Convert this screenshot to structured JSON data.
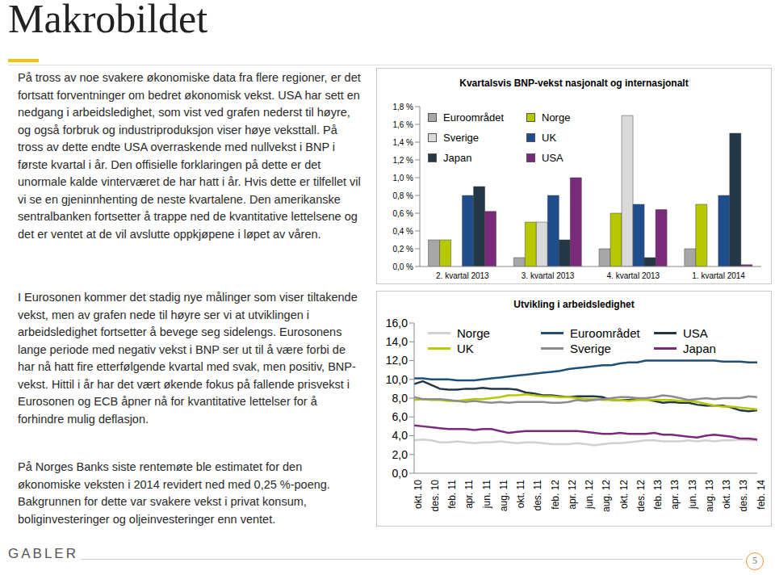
{
  "title": "Makrobildet",
  "paragraphs": [
    "På tross av noe svakere økonomiske data fra flere regioner, er det fortsatt forventninger om bedret økonomisk vekst. USA har sett en nedgang i arbeidsledighet, som vist ved grafen nederst til høyre, og også forbruk og industriproduksjon viser høye veksttall. På tross av dette endte USA overraskende med nullvekst i BNP i første kvartal i år. Den offisielle forklaringen på dette er det unormale kalde vinterværet de har hatt i år. Hvis dette er tilfellet vil vi se en gjeninnhenting de neste kvartalene. Den amerikanske sentralbanken fortsetter å trappe ned de kvantitative lettelsene og det er ventet at de vil avslutte oppkjøpene i løpet av våren.",
    "I Eurosonen kommer det stadig nye målinger som viser tiltakende vekst, men av grafen nede til høyre ser vi at utviklingen i arbeidsledighet fortsetter å bevege seg sidelengs. Eurosonens lange periode med negativ vekst i BNP ser ut til å være forbi de har nå hatt fire etterfølgende kvartal med svak, men positiv, BNP-vekst. Hittil i år har det vært økende fokus på fallende prisvekst i Eurosonen og ECB åpner nå for kvantitative lettelser for å forhindre mulig deflasjon.",
    "På Norges Banks siste rentemøte ble estimatet for den økonomiske veksten i 2014 revidert ned med 0,25 %-poeng. Bakgrunnen for dette var svakere vekst i privat konsum, boliginvesteringer og oljeinvesteringer enn ventet."
  ],
  "footer": {
    "logo": "GABLER",
    "page": 5
  },
  "chart_data": [
    {
      "type": "bar",
      "title": "Kvartalsvis BNP-vekst nasjonalt og internasjonalt",
      "categories": [
        "2. kvartal 2013",
        "3. kvartal 2013",
        "4. kvartal 2013",
        "1. kvartal 2014"
      ],
      "series": [
        {
          "name": "Euroområdet",
          "color": "#a6a6a6",
          "values": [
            0.3,
            0.1,
            0.2,
            0.2
          ]
        },
        {
          "name": "Norge",
          "color": "#b5c800",
          "values": [
            0.3,
            0.5,
            0.6,
            0.7
          ]
        },
        {
          "name": "Sverige",
          "color": "#d9d9d9",
          "values": [
            0.0,
            0.5,
            1.7,
            null
          ]
        },
        {
          "name": "UK",
          "color": "#1f4e8c",
          "values": [
            0.8,
            0.8,
            0.7,
            0.8
          ]
        },
        {
          "name": "Japan",
          "color": "#243746",
          "values": [
            0.9,
            0.3,
            0.1,
            1.5
          ]
        },
        {
          "name": "USA",
          "color": "#7a2a7a",
          "values": [
            0.62,
            1.0,
            0.64,
            0.02
          ]
        }
      ],
      "ylim": [
        0,
        1.8
      ],
      "yticks": [
        {
          "value": 0,
          "label": "0,0 %"
        },
        {
          "value": 0.2,
          "label": "0,2 %"
        },
        {
          "value": 0.4,
          "label": "0,4 %"
        },
        {
          "value": 0.6,
          "label": "0,6 %"
        },
        {
          "value": 0.8,
          "label": "0,8 %"
        },
        {
          "value": 1.0,
          "label": "1,0 %"
        },
        {
          "value": 1.2,
          "label": "1,2 %"
        },
        {
          "value": 1.4,
          "label": "1,4 %"
        },
        {
          "value": 1.6,
          "label": "1,6 %"
        },
        {
          "value": 1.8,
          "label": "1,8 %"
        }
      ],
      "grid": false,
      "legend": "upper left"
    },
    {
      "type": "line",
      "title": "Utvikling i arbeidsledighet",
      "categories": [
        "okt. 10",
        null,
        "des. 10",
        null,
        "feb. 11",
        null,
        "apr. 11",
        null,
        "jun. 11",
        null,
        "aug. 11",
        null,
        "okt. 11",
        null,
        "des. 11",
        null,
        "feb. 12",
        null,
        "apr. 12",
        null,
        "jun. 12",
        null,
        "aug. 12",
        null,
        "okt. 12",
        null,
        "des. 12",
        null,
        "feb. 13",
        null,
        "apr. 13",
        null,
        "jun. 13",
        null,
        "aug. 13",
        null,
        "okt. 13",
        null,
        "des. 13",
        null,
        "feb. 14"
      ],
      "series": [
        {
          "name": "Norge",
          "color": "#d0d0d0",
          "values": [
            3.5,
            3.6,
            3.5,
            3.3,
            3.3,
            3.4,
            3.3,
            3.2,
            3.3,
            3.3,
            3.4,
            3.3,
            3.2,
            3.3,
            3.3,
            3.2,
            3.1,
            3.1,
            3.1,
            3.2,
            3.1,
            3.0,
            3.1,
            3.2,
            3.2,
            3.3,
            3.4,
            3.5,
            3.5,
            3.4,
            3.4,
            3.4,
            3.5,
            3.4,
            3.5,
            3.4,
            3.5,
            3.5,
            3.6,
            3.5,
            3.5
          ]
        },
        {
          "name": "Euroområdet",
          "color": "#1f4e79",
          "values": [
            10.1,
            10.1,
            10.0,
            10.0,
            10.0,
            9.9,
            9.9,
            9.9,
            10.0,
            10.1,
            10.2,
            10.3,
            10.4,
            10.5,
            10.6,
            10.7,
            10.8,
            10.9,
            11.1,
            11.2,
            11.3,
            11.4,
            11.5,
            11.5,
            11.7,
            11.8,
            11.8,
            12.0,
            12.0,
            12.0,
            12.0,
            12.0,
            12.0,
            12.0,
            12.0,
            12.0,
            11.9,
            11.9,
            11.9,
            11.8,
            11.8
          ]
        },
        {
          "name": "USA",
          "color": "#243746",
          "values": [
            9.5,
            9.8,
            9.4,
            9.0,
            8.9,
            8.9,
            9.0,
            9.0,
            9.1,
            9.0,
            9.0,
            9.0,
            8.9,
            8.6,
            8.5,
            8.3,
            8.3,
            8.2,
            8.1,
            8.2,
            8.2,
            8.2,
            8.1,
            7.8,
            7.8,
            7.8,
            7.9,
            7.9,
            7.7,
            7.5,
            7.6,
            7.5,
            7.5,
            7.3,
            7.2,
            7.2,
            7.2,
            7.0,
            6.7,
            6.6,
            6.7
          ]
        },
        {
          "name": "UK",
          "color": "#b5c800",
          "values": [
            7.8,
            7.9,
            7.8,
            7.8,
            7.7,
            7.7,
            7.8,
            7.9,
            7.9,
            8.0,
            8.1,
            8.3,
            8.3,
            8.4,
            8.3,
            8.2,
            8.2,
            8.1,
            8.1,
            8.0,
            7.9,
            7.9,
            7.8,
            7.8,
            7.8,
            7.7,
            7.8,
            7.8,
            7.8,
            7.8,
            7.8,
            7.7,
            7.7,
            7.6,
            7.4,
            7.2,
            7.1,
            7.1,
            7.0,
            6.9,
            6.8
          ]
        },
        {
          "name": "Sverige",
          "color": "#8c8c8c",
          "values": [
            8.1,
            7.9,
            7.9,
            7.9,
            7.8,
            7.7,
            7.6,
            7.7,
            7.6,
            7.5,
            7.6,
            7.5,
            7.6,
            7.6,
            7.6,
            7.6,
            7.5,
            7.5,
            7.6,
            7.8,
            7.7,
            7.8,
            7.9,
            8.0,
            8.1,
            8.1,
            8.0,
            8.0,
            8.1,
            8.3,
            8.2,
            8.0,
            7.8,
            7.9,
            8.0,
            7.9,
            8.0,
            8.0,
            8.0,
            8.2,
            8.1
          ]
        },
        {
          "name": "Japan",
          "color": "#7a2a7a",
          "values": [
            5.1,
            5.0,
            4.9,
            4.8,
            4.7,
            4.7,
            4.7,
            4.6,
            4.7,
            4.7,
            4.5,
            4.3,
            4.4,
            4.5,
            4.5,
            4.5,
            4.5,
            4.5,
            4.5,
            4.5,
            4.4,
            4.3,
            4.2,
            4.2,
            4.3,
            4.2,
            4.2,
            4.2,
            4.3,
            4.1,
            4.1,
            4.0,
            3.9,
            3.8,
            4.0,
            4.1,
            4.0,
            3.9,
            3.7,
            3.7,
            3.6
          ]
        }
      ],
      "ylim": [
        0,
        16
      ],
      "yticks": [
        {
          "value": 0,
          "label": "0,0"
        },
        {
          "value": 2,
          "label": "2,0"
        },
        {
          "value": 4,
          "label": "4,0"
        },
        {
          "value": 6,
          "label": "6,0"
        },
        {
          "value": 8,
          "label": "8,0"
        },
        {
          "value": 10,
          "label": "10,0"
        },
        {
          "value": 12,
          "label": "12,0"
        },
        {
          "value": 14,
          "label": "14,0"
        },
        {
          "value": 16,
          "label": "16,0"
        }
      ],
      "grid": false,
      "legend": "top"
    }
  ]
}
